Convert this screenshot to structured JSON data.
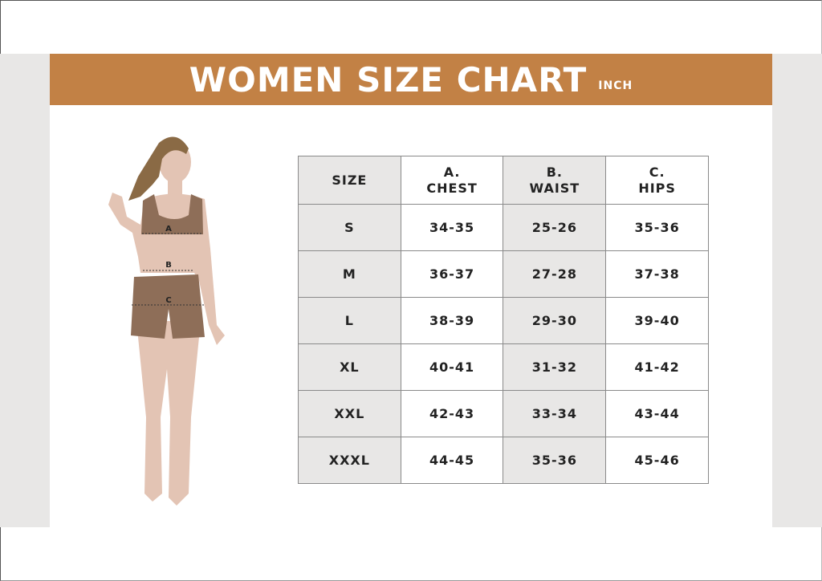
{
  "header": {
    "title": "WOMEN SIZE CHART",
    "unit": "INCH"
  },
  "figure": {
    "labels": [
      "A",
      "B",
      "C"
    ]
  },
  "colors": {
    "banner": "#c28145",
    "shaded_column": "#e8e7e6",
    "garment": "#8e6e58",
    "skin": "#e3c4b4",
    "hair": "#8a6a45"
  },
  "table": {
    "headers": [
      {
        "line1": "",
        "line2": "SIZE"
      },
      {
        "line1": "A.",
        "line2": "CHEST"
      },
      {
        "line1": "B.",
        "line2": "WAIST"
      },
      {
        "line1": "C.",
        "line2": "HIPS"
      }
    ],
    "rows": [
      [
        "S",
        "34-35",
        "25-26",
        "35-36"
      ],
      [
        "M",
        "36-37",
        "27-28",
        "37-38"
      ],
      [
        "L",
        "38-39",
        "29-30",
        "39-40"
      ],
      [
        "XL",
        "40-41",
        "31-32",
        "41-42"
      ],
      [
        "XXL",
        "42-43",
        "33-34",
        "43-44"
      ],
      [
        "XXXL",
        "44-45",
        "35-36",
        "45-46"
      ]
    ]
  }
}
